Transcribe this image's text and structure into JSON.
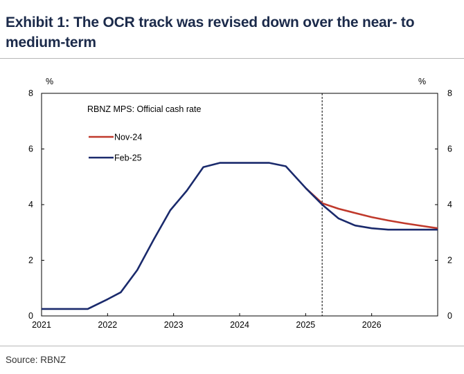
{
  "title": "Exhibit 1: The OCR track was revised down over the near- to medium-term",
  "source": "Source: RBNZ",
  "chart_data": {
    "type": "line",
    "title": "RBNZ MPS: Official cash rate",
    "ylabel_left": "%",
    "ylabel_right": "%",
    "xlim": [
      2021.0,
      2027.0
    ],
    "ylim": [
      0,
      8
    ],
    "x_ticks": [
      2021,
      2022,
      2023,
      2024,
      2025,
      2026
    ],
    "y_ticks": [
      0,
      2,
      4,
      6,
      8
    ],
    "legend_position": "top-left",
    "vertical_marker_x": 2025.25,
    "series": [
      {
        "name": "Nov-24",
        "color": "#c0392b",
        "x": [
          2025.0,
          2025.25,
          2025.5,
          2025.75,
          2026.0,
          2026.25,
          2026.5,
          2026.75,
          2027.0
        ],
        "y": [
          4.6,
          4.05,
          3.85,
          3.7,
          3.55,
          3.43,
          3.33,
          3.24,
          3.15
        ]
      },
      {
        "name": "Feb-25",
        "color": "#1a2a6c",
        "x": [
          2021.0,
          2021.5,
          2021.7,
          2022.0,
          2022.2,
          2022.45,
          2022.7,
          2022.95,
          2023.2,
          2023.45,
          2023.7,
          2023.95,
          2024.2,
          2024.45,
          2024.7,
          2025.0,
          2025.25,
          2025.5,
          2025.75,
          2026.0,
          2026.25,
          2026.5,
          2026.75,
          2027.0
        ],
        "y": [
          0.25,
          0.25,
          0.25,
          0.6,
          0.85,
          1.65,
          2.75,
          3.8,
          4.5,
          5.35,
          5.5,
          5.5,
          5.5,
          5.5,
          5.38,
          4.6,
          4.0,
          3.5,
          3.25,
          3.15,
          3.1,
          3.1,
          3.1,
          3.1
        ]
      }
    ]
  }
}
